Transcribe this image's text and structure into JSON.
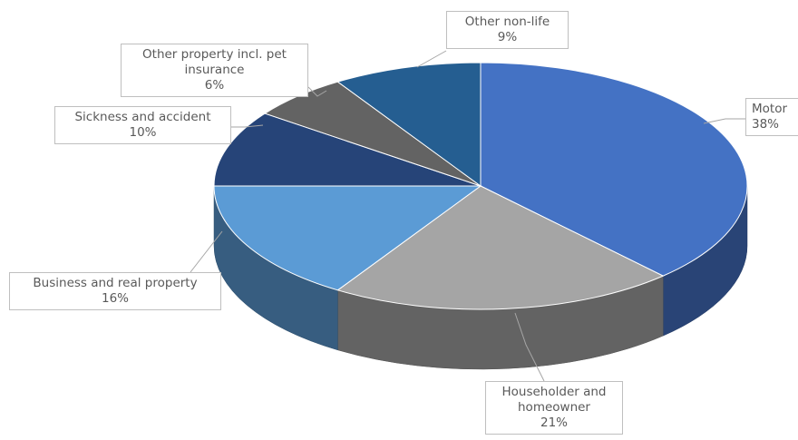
{
  "chart_data": {
    "type": "pie3d",
    "categories": [
      "Motor",
      "Householder and homeowner",
      "Business and real property",
      "Sickness and accident",
      "Other property incl. pet insurance",
      "Other non-life"
    ],
    "values": [
      38,
      21,
      16,
      10,
      6,
      9
    ],
    "value_labels": [
      "38%",
      "21%",
      "16%",
      "10%",
      "6%",
      "9%"
    ],
    "colors": [
      "#4472c4",
      "#a5a5a5",
      "#5b9bd5",
      "#264478",
      "#636363",
      "#255e91"
    ]
  }
}
